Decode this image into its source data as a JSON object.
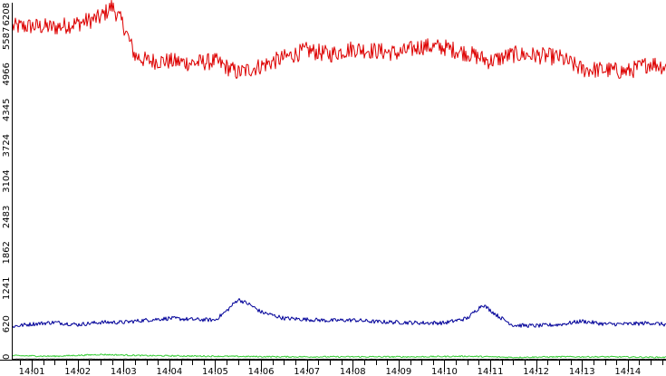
{
  "chart_data": {
    "type": "line",
    "title": "",
    "xlabel": "",
    "ylabel": "",
    "grid": false,
    "ylim": [
      0,
      6208
    ],
    "y_ticks": [
      "0",
      "620",
      "1241",
      "1862",
      "2483",
      "3104",
      "3724",
      "4345",
      "4966",
      "5587",
      "6208"
    ],
    "x_ticks": [
      "14:01",
      "14:02",
      "14:03",
      "14:04",
      "14:05",
      "14:06",
      "14:07",
      "14:08",
      "14:09",
      "14:10",
      "14:11",
      "14:12",
      "14:13",
      "14:14"
    ],
    "x_range": [
      "14:00:35",
      "14:14:50"
    ],
    "series": [
      {
        "color": "#dd0000",
        "points": [
          [
            "14:00:35",
            5790
          ],
          [
            "14:01:00",
            5800
          ],
          [
            "14:01:30",
            5780
          ],
          [
            "14:02:00",
            5850
          ],
          [
            "14:02:30",
            5950
          ],
          [
            "14:02:45",
            6150
          ],
          [
            "14:03:00",
            5820
          ],
          [
            "14:03:15",
            5290
          ],
          [
            "14:03:30",
            5200
          ],
          [
            "14:04:00",
            5190
          ],
          [
            "14:04:30",
            5160
          ],
          [
            "14:05:00",
            5190
          ],
          [
            "14:05:30",
            4990
          ],
          [
            "14:06:00",
            5110
          ],
          [
            "14:06:30",
            5250
          ],
          [
            "14:07:00",
            5380
          ],
          [
            "14:07:30",
            5310
          ],
          [
            "14:08:00",
            5410
          ],
          [
            "14:08:30",
            5370
          ],
          [
            "14:09:00",
            5330
          ],
          [
            "14:09:30",
            5450
          ],
          [
            "14:10:00",
            5430
          ],
          [
            "14:10:30",
            5330
          ],
          [
            "14:11:00",
            5190
          ],
          [
            "14:11:30",
            5310
          ],
          [
            "14:12:00",
            5290
          ],
          [
            "14:12:30",
            5260
          ],
          [
            "14:13:00",
            5050
          ],
          [
            "14:13:30",
            5040
          ],
          [
            "14:14:00",
            5010
          ],
          [
            "14:14:30",
            5160
          ],
          [
            "14:14:50",
            5090
          ]
        ]
      },
      {
        "color": "#000099",
        "points": [
          [
            "14:00:35",
            580
          ],
          [
            "14:01:00",
            620
          ],
          [
            "14:01:30",
            650
          ],
          [
            "14:02:00",
            610
          ],
          [
            "14:02:30",
            650
          ],
          [
            "14:03:00",
            650
          ],
          [
            "14:03:30",
            690
          ],
          [
            "14:04:00",
            720
          ],
          [
            "14:04:30",
            700
          ],
          [
            "14:05:00",
            690
          ],
          [
            "14:05:15",
            850
          ],
          [
            "14:05:30",
            1050
          ],
          [
            "14:05:45",
            960
          ],
          [
            "14:06:00",
            830
          ],
          [
            "14:06:30",
            720
          ],
          [
            "14:07:00",
            700
          ],
          [
            "14:07:30",
            680
          ],
          [
            "14:08:00",
            690
          ],
          [
            "14:08:30",
            660
          ],
          [
            "14:09:00",
            650
          ],
          [
            "14:09:30",
            640
          ],
          [
            "14:10:00",
            640
          ],
          [
            "14:10:30",
            720
          ],
          [
            "14:10:50",
            960
          ],
          [
            "14:11:10",
            760
          ],
          [
            "14:11:30",
            600
          ],
          [
            "14:12:00",
            590
          ],
          [
            "14:12:30",
            610
          ],
          [
            "14:13:00",
            670
          ],
          [
            "14:13:30",
            620
          ],
          [
            "14:14:00",
            620
          ],
          [
            "14:14:30",
            640
          ],
          [
            "14:14:50",
            610
          ]
        ]
      },
      {
        "color": "#33cc33",
        "points": [
          [
            "14:00:35",
            70
          ],
          [
            "14:01:30",
            60
          ],
          [
            "14:02:30",
            90
          ],
          [
            "14:03:30",
            70
          ],
          [
            "14:05:00",
            60
          ],
          [
            "14:06:30",
            50
          ],
          [
            "14:08:00",
            50
          ],
          [
            "14:09:30",
            50
          ],
          [
            "14:10:30",
            60
          ],
          [
            "14:11:30",
            40
          ],
          [
            "14:12:30",
            50
          ],
          [
            "14:13:30",
            50
          ],
          [
            "14:14:50",
            40
          ]
        ]
      },
      {
        "color": "#000000",
        "points": [
          [
            "14:00:35",
            10
          ],
          [
            "14:04:00",
            8
          ],
          [
            "14:08:00",
            6
          ],
          [
            "14:12:00",
            5
          ],
          [
            "14:14:50",
            6
          ]
        ]
      }
    ]
  }
}
